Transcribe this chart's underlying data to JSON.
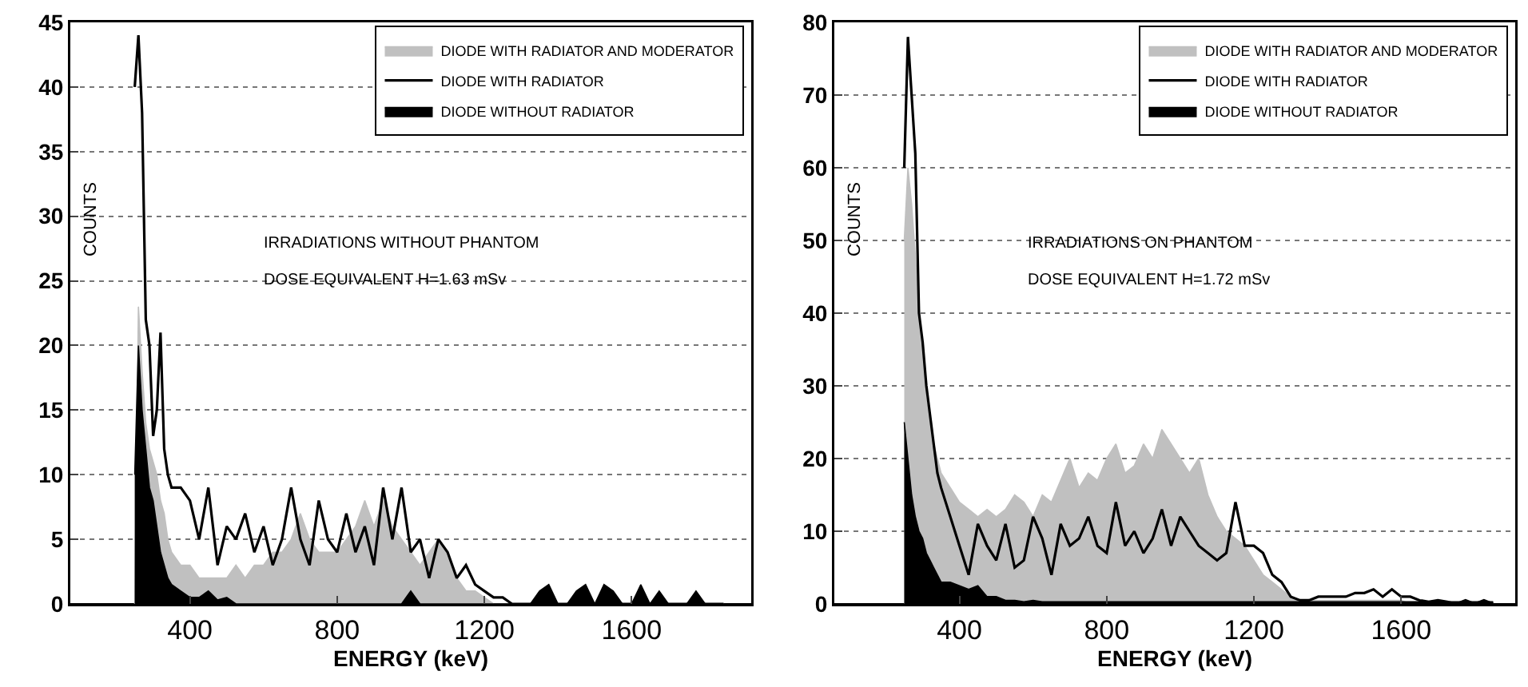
{
  "chart_data": [
    {
      "type": "area",
      "xlabel": "ENERGY (keV)",
      "ylabel": "COUNTS",
      "annotations": [
        "IRRADIATIONS WITHOUT PHANTOM",
        "DOSE EQUIVALENT H=1.63 mSv"
      ],
      "x": [
        250,
        260,
        270,
        280,
        290,
        300,
        310,
        320,
        330,
        340,
        350,
        375,
        400,
        425,
        450,
        475,
        500,
        525,
        550,
        575,
        600,
        625,
        650,
        675,
        700,
        725,
        750,
        775,
        800,
        825,
        850,
        875,
        900,
        925,
        950,
        975,
        1000,
        1025,
        1050,
        1075,
        1100,
        1125,
        1150,
        1175,
        1200,
        1225,
        1250,
        1275,
        1300,
        1325,
        1350,
        1375,
        1400,
        1425,
        1450,
        1475,
        1500,
        1525,
        1550,
        1575,
        1600,
        1625,
        1650,
        1675,
        1700,
        1725,
        1750,
        1775,
        1800,
        1825,
        1850
      ],
      "xlim": [
        75,
        1925
      ],
      "xticks": [
        400,
        800,
        1200,
        1600
      ],
      "ylim": [
        0,
        45
      ],
      "yticks": [
        0,
        5,
        10,
        15,
        20,
        25,
        30,
        35,
        40,
        45
      ],
      "grid": "y",
      "legend": "top",
      "series": [
        {
          "name": "DIODE WITH RADIATOR AND MODERATOR",
          "color": "#c0c0c0",
          "values": [
            0,
            23,
            18,
            14,
            12,
            11,
            10,
            8,
            7,
            5,
            4,
            3,
            3,
            2,
            2,
            2,
            2,
            3,
            2,
            3,
            3,
            4,
            4,
            5,
            7,
            5,
            4,
            4,
            4,
            5,
            6,
            8,
            6,
            8,
            6,
            5,
            4,
            3,
            4,
            5,
            4,
            2,
            1,
            1,
            0.5,
            0,
            0,
            0,
            0,
            0,
            0,
            0,
            0,
            0,
            0,
            0,
            0,
            0,
            0,
            0,
            0,
            0,
            0,
            0,
            0,
            0,
            0,
            0,
            0,
            0,
            0
          ]
        },
        {
          "name": "DIODE WITH RADIATOR",
          "type": "line",
          "color": "#000000",
          "values": [
            40,
            44,
            38,
            22,
            20,
            13,
            15,
            21,
            12,
            10,
            9,
            9,
            8,
            5,
            9,
            3,
            6,
            5,
            7,
            4,
            6,
            3,
            5,
            9,
            5,
            3,
            8,
            5,
            4,
            7,
            4,
            6,
            3,
            9,
            5,
            9,
            4,
            5,
            2,
            5,
            4,
            2,
            3,
            1.5,
            1,
            0.5,
            0.5,
            0,
            0,
            0,
            0,
            0,
            0,
            0,
            0,
            0,
            0,
            0,
            0,
            0,
            0,
            0,
            0,
            0,
            0,
            0,
            0,
            0,
            0,
            0,
            0
          ]
        },
        {
          "name": "DIODE WITHOUT RADIATOR",
          "color": "#000000",
          "values": [
            10,
            20,
            15,
            12,
            9,
            8,
            6,
            4,
            3,
            2,
            1.5,
            1,
            0.5,
            0.5,
            1,
            0.3,
            0.5,
            0,
            0,
            0,
            0,
            0,
            0,
            0,
            0,
            0,
            0,
            0,
            0,
            0,
            0,
            0,
            0,
            0,
            0,
            0,
            1,
            0,
            0,
            0,
            0,
            0,
            0,
            0,
            0,
            0,
            0,
            0,
            0,
            0,
            1,
            1.5,
            0,
            0,
            1,
            1.5,
            0,
            1.5,
            1,
            0,
            0,
            1.5,
            0,
            1,
            0,
            0,
            0,
            1,
            0,
            0,
            0
          ]
        }
      ]
    },
    {
      "type": "area",
      "xlabel": "ENERGY (keV)",
      "ylabel": "COUNTS",
      "annotations": [
        "IRRADIATIONS ON PHANTOM",
        "DOSE EQUIVALENT H=1.72 mSv"
      ],
      "x": [
        250,
        260,
        270,
        280,
        290,
        300,
        310,
        320,
        330,
        340,
        350,
        375,
        400,
        425,
        450,
        475,
        500,
        525,
        550,
        575,
        600,
        625,
        650,
        675,
        700,
        725,
        750,
        775,
        800,
        825,
        850,
        875,
        900,
        925,
        950,
        975,
        1000,
        1025,
        1050,
        1075,
        1100,
        1125,
        1150,
        1175,
        1200,
        1225,
        1250,
        1275,
        1300,
        1325,
        1350,
        1375,
        1400,
        1425,
        1450,
        1475,
        1500,
        1525,
        1550,
        1575,
        1600,
        1625,
        1650,
        1675,
        1700,
        1725,
        1750,
        1775,
        1800,
        1825,
        1850
      ],
      "xlim": [
        60,
        1910
      ],
      "xticks": [
        400,
        800,
        1200,
        1600
      ],
      "ylim": [
        0,
        80
      ],
      "yticks": [
        0,
        10,
        20,
        30,
        40,
        50,
        60,
        70,
        80
      ],
      "grid": "y",
      "legend": "top",
      "series": [
        {
          "name": "DIODE WITH RADIATOR AND MODERATOR",
          "color": "#c0c0c0",
          "values": [
            50,
            60,
            55,
            48,
            40,
            35,
            28,
            25,
            22,
            20,
            18,
            16,
            14,
            13,
            12,
            13,
            12,
            13,
            15,
            14,
            12,
            15,
            14,
            17,
            20,
            16,
            18,
            17,
            20,
            22,
            18,
            19,
            22,
            20,
            24,
            22,
            20,
            18,
            20,
            15,
            12,
            10,
            9,
            8,
            6,
            4,
            3,
            2,
            1,
            0.5,
            0.5,
            0.5,
            0.5,
            0.5,
            0.5,
            0.5,
            0.5,
            0.5,
            0.5,
            0.5,
            0.5,
            0,
            0,
            0,
            0,
            0,
            0,
            0,
            0,
            0,
            0
          ]
        },
        {
          "name": "DIODE WITH RADIATOR",
          "type": "line",
          "color": "#000000",
          "values": [
            60,
            78,
            70,
            62,
            40,
            36,
            30,
            26,
            22,
            18,
            16,
            12,
            8,
            4,
            11,
            8,
            6,
            11,
            5,
            6,
            12,
            9,
            4,
            11,
            8,
            9,
            12,
            8,
            7,
            14,
            8,
            10,
            7,
            9,
            13,
            8,
            12,
            10,
            8,
            7,
            6,
            7,
            14,
            8,
            8,
            7,
            4,
            3,
            1,
            0.5,
            0.5,
            1,
            1,
            1,
            1,
            1.5,
            1.5,
            2,
            1,
            2,
            1,
            1,
            0.5,
            0.3,
            0.5,
            0.3,
            0,
            0.5,
            0,
            0.5,
            0
          ]
        },
        {
          "name": "DIODE WITHOUT RADIATOR",
          "color": "#000000",
          "values": [
            25,
            20,
            15,
            12,
            10,
            9,
            7,
            6,
            5,
            4,
            3,
            3,
            2.5,
            2,
            2.5,
            1,
            1,
            0.5,
            0.5,
            0.3,
            0.5,
            0.3,
            0.3,
            0.3,
            0.3,
            0.3,
            0.3,
            0.3,
            0.3,
            0.3,
            0.3,
            0.3,
            0.3,
            0.3,
            0.3,
            0.3,
            0.3,
            0.3,
            0.3,
            0.3,
            0.3,
            0.3,
            0.3,
            0.3,
            0.3,
            0.3,
            0.3,
            0.3,
            0.3,
            0.3,
            0.3,
            0.3,
            0.3,
            0.3,
            0.3,
            0.3,
            0.3,
            0.3,
            0.3,
            0.3,
            0.3,
            0.3,
            0.3,
            0.3,
            0.3,
            0.3,
            0.3,
            0.3,
            0.3,
            0.3,
            0.3
          ]
        }
      ]
    }
  ]
}
